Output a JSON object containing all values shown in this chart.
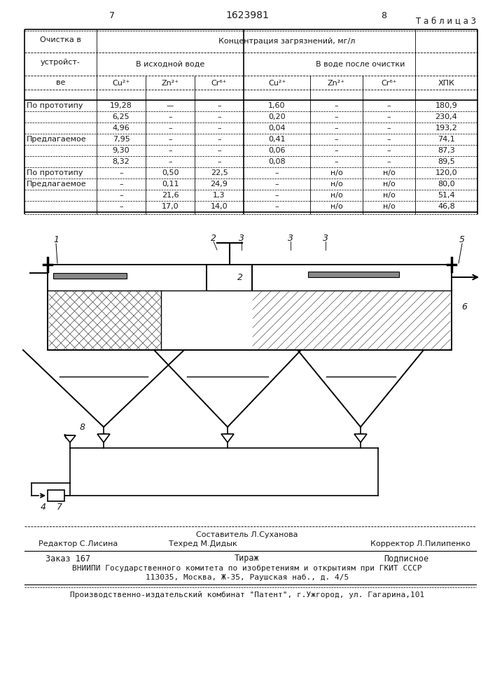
{
  "page_numbers": [
    "7",
    "1623981",
    "8"
  ],
  "table_title": "Т а б л и ц а 3",
  "rows": [
    [
      "По прототипу",
      "19,28",
      "––",
      "–",
      "1,60",
      "–",
      "–",
      "180,9"
    ],
    [
      "",
      "6,25",
      "–",
      "–",
      "0,20",
      "–",
      "–",
      "230,4"
    ],
    [
      "",
      "4,96",
      "–",
      "–",
      "0,04",
      "–",
      "–",
      "193,2"
    ],
    [
      "Предлагаемое",
      "7,95",
      "–",
      "–",
      "0,41",
      "–",
      "–",
      "74,1"
    ],
    [
      "",
      "9,30",
      "–",
      "–",
      "0,06",
      "–",
      "–",
      "87,3"
    ],
    [
      "",
      "8,32",
      "–",
      "–",
      "0,08",
      "–",
      "–",
      "89,5"
    ],
    [
      "По прототипу",
      "–",
      "0,50",
      "22,5",
      "–",
      "н/о",
      "н/о",
      "120,0"
    ],
    [
      "Предлагаемое",
      "–",
      "0,11",
      "24,9",
      "–",
      "н/о",
      "н/о",
      "80,0"
    ],
    [
      "",
      "–",
      "21,6",
      "1,3",
      "–",
      "н/о",
      "н/о",
      "51,4"
    ],
    [
      "",
      "–",
      "17,0",
      "14,0",
      "–",
      "н/о",
      "н/о",
      "46,8"
    ]
  ],
  "footer_composer": "Составитель Л.Суханова",
  "footer_editor": "Редактор С.Лисина",
  "footer_techred": "Техред М.Дидык",
  "footer_corrector": "Корректор Л.Пилипенко",
  "footer_order": "Заказ 167",
  "footer_tirazh": "Тираж",
  "footer_podpisnoe": "Подписное",
  "footer_vnipi": "ВНИИПИ Государственного комитета по изобретениям и открытиям при ГКИТ СССР",
  "footer_address": "113035, Москва, Ж-35, Раушская наб., д. 4/5",
  "footer_plant": "Производственно-издательский комбинат \"Патент\", г.Ужгород, ул. Гагарина,101",
  "bg_color": "#ffffff",
  "text_color": "#1a1a1a"
}
